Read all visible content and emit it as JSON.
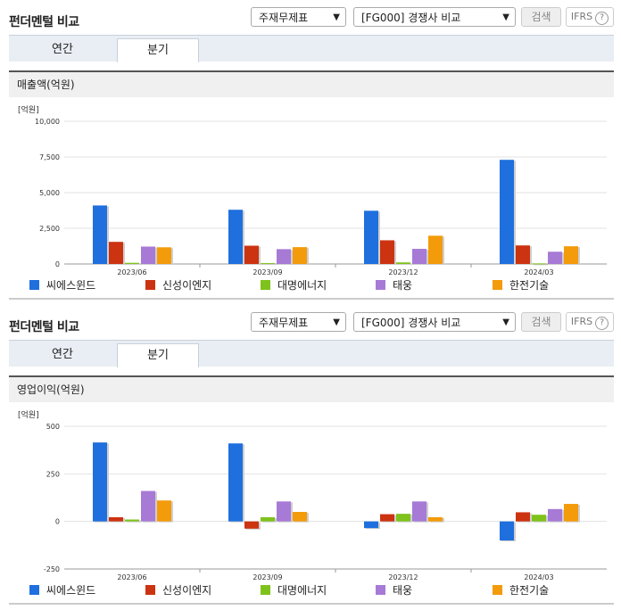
{
  "panels": [
    {
      "header": {
        "title": "펀더멘털 비교",
        "select_statement": "주재무제표",
        "select_compare": "[FG000] 경쟁사 비교",
        "search_label": "검색",
        "ifrs_label": "IFRS",
        "help_glyph": "?"
      },
      "tabs": [
        {
          "label": "연간"
        },
        {
          "label": "분기"
        }
      ],
      "active_tab": 1,
      "subtitle": "매출액(억원)",
      "chart_data": {
        "type": "bar",
        "unit_label": "[억원]",
        "categories": [
          "2023/06",
          "2023/09",
          "2023/12",
          "2024/03"
        ],
        "yticks": [
          0,
          2500,
          5000,
          7500,
          10000
        ],
        "ytick_labels": [
          "0",
          "2,500",
          "5,000",
          "7,500",
          "10,000"
        ],
        "ylim": [
          0,
          10000
        ],
        "series": [
          {
            "name": "씨에스윈드",
            "color": "#1f6fde",
            "values": [
              4100,
              3800,
              3730,
              7300
            ]
          },
          {
            "name": "신성이엔지",
            "color": "#cc3311",
            "values": [
              1550,
              1280,
              1660,
              1300
            ]
          },
          {
            "name": "대명에너지",
            "color": "#7fc21c",
            "values": [
              80,
              60,
              110,
              40
            ]
          },
          {
            "name": "태웅",
            "color": "#a77ad6",
            "values": [
              1220,
              1040,
              1060,
              860
            ]
          },
          {
            "name": "한전기술",
            "color": "#f39b0a",
            "values": [
              1170,
              1180,
              1980,
              1240
            ]
          }
        ]
      }
    },
    {
      "header": {
        "title": "펀더멘털 비교",
        "select_statement": "주재무제표",
        "select_compare": "[FG000] 경쟁사 비교",
        "search_label": "검색",
        "ifrs_label": "IFRS",
        "help_glyph": "?"
      },
      "tabs": [
        {
          "label": "연간"
        },
        {
          "label": "분기"
        }
      ],
      "active_tab": 1,
      "subtitle": "영업이익(억원)",
      "chart_data": {
        "type": "bar",
        "unit_label": "[억원]",
        "categories": [
          "2023/06",
          "2023/09",
          "2023/12",
          "2024/03"
        ],
        "yticks": [
          -250,
          0,
          250,
          500
        ],
        "ytick_labels": [
          "-250",
          "0",
          "250",
          "500"
        ],
        "ylim": [
          -250,
          500
        ],
        "series": [
          {
            "name": "씨에스윈드",
            "color": "#1f6fde",
            "values": [
              415,
              410,
              -35,
              -100
            ]
          },
          {
            "name": "신성이엔지",
            "color": "#cc3311",
            "values": [
              22,
              -38,
              38,
              48
            ]
          },
          {
            "name": "대명에너지",
            "color": "#7fc21c",
            "values": [
              10,
              22,
              40,
              35
            ]
          },
          {
            "name": "태웅",
            "color": "#a77ad6",
            "values": [
              160,
              105,
              105,
              65
            ]
          },
          {
            "name": "한전기술",
            "color": "#f39b0a",
            "values": [
              110,
              50,
              22,
              92
            ]
          }
        ]
      }
    }
  ]
}
